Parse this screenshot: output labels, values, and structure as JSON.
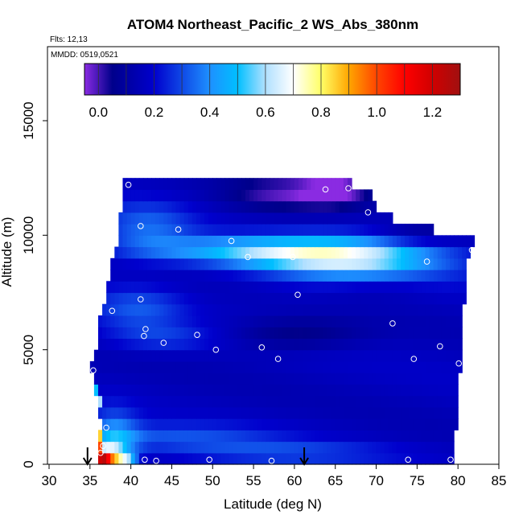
{
  "chart_data": {
    "type": "heatmap",
    "title": "ATOM4 Northeast_Pacific_2 WS_Abs_380nm",
    "flights_label": "Flts: 12,13",
    "dates_label": "MMDD: 0519,0521",
    "xlabel": "Latitude (deg N)",
    "ylabel": "Altitude (m)",
    "xlim": [
      30,
      85
    ],
    "ylim": [
      0,
      17500
    ],
    "xticks": [
      30,
      35,
      40,
      45,
      50,
      55,
      60,
      65,
      70,
      75,
      80,
      85
    ],
    "yticks": [
      0,
      5000,
      10000,
      15000
    ],
    "colorbar": {
      "min": -0.05,
      "max": 1.3,
      "ticks": [
        0.0,
        0.2,
        0.4,
        0.6,
        0.8,
        1.0,
        1.2
      ],
      "tick_labels": [
        "0.0",
        "0.2",
        "0.4",
        "0.6",
        "0.8",
        "1.0",
        "1.2"
      ],
      "stops": [
        {
          "value": -0.05,
          "color": "#8a2be2"
        },
        {
          "value": 0.05,
          "color": "#00008b"
        },
        {
          "value": 0.2,
          "color": "#0000cd"
        },
        {
          "value": 0.4,
          "color": "#1e90ff"
        },
        {
          "value": 0.5,
          "color": "#00bfff"
        },
        {
          "value": 0.6,
          "color": "#b0e0ff"
        },
        {
          "value": 0.7,
          "color": "#ffffff"
        },
        {
          "value": 0.8,
          "color": "#ffff66"
        },
        {
          "value": 0.9,
          "color": "#ffa500"
        },
        {
          "value": 1.0,
          "color": "#ff4500"
        },
        {
          "value": 1.1,
          "color": "#ff0000"
        },
        {
          "value": 1.2,
          "color": "#d00000"
        },
        {
          "value": 1.3,
          "color": "#a01010"
        }
      ]
    },
    "field": {
      "lat_step": 0.5,
      "alt_step": 500,
      "envelope": [
        {
          "alt": 0,
          "lat_min": 36.0,
          "lat_max": 79.5
        },
        {
          "alt": 500,
          "lat_min": 36.0,
          "lat_max": 79.5
        },
        {
          "alt": 1000,
          "lat_min": 36.0,
          "lat_max": 79.5
        },
        {
          "alt": 1500,
          "lat_min": 36.5,
          "lat_max": 80.0
        },
        {
          "alt": 2000,
          "lat_min": 36.0,
          "lat_max": 80.0
        },
        {
          "alt": 2500,
          "lat_min": 36.0,
          "lat_max": 80.0
        },
        {
          "alt": 3000,
          "lat_min": 35.5,
          "lat_max": 80.0
        },
        {
          "alt": 3500,
          "lat_min": 35.5,
          "lat_max": 80.0
        },
        {
          "alt": 4000,
          "lat_min": 35.0,
          "lat_max": 80.5
        },
        {
          "alt": 4500,
          "lat_min": 35.5,
          "lat_max": 80.5
        },
        {
          "alt": 5000,
          "lat_min": 36.0,
          "lat_max": 80.5
        },
        {
          "alt": 5500,
          "lat_min": 36.0,
          "lat_max": 80.5
        },
        {
          "alt": 6000,
          "lat_min": 36.0,
          "lat_max": 80.5
        },
        {
          "alt": 6500,
          "lat_min": 36.5,
          "lat_max": 80.5
        },
        {
          "alt": 7000,
          "lat_min": 37.0,
          "lat_max": 81.0
        },
        {
          "alt": 7500,
          "lat_min": 37.0,
          "lat_max": 81.0
        },
        {
          "alt": 8000,
          "lat_min": 37.5,
          "lat_max": 81.0
        },
        {
          "alt": 8500,
          "lat_min": 37.5,
          "lat_max": 81.0
        },
        {
          "alt": 9000,
          "lat_min": 38.0,
          "lat_max": 81.5
        },
        {
          "alt": 9500,
          "lat_min": 38.5,
          "lat_max": 82.0
        },
        {
          "alt": 10000,
          "lat_min": 38.5,
          "lat_max": 77.0
        },
        {
          "alt": 10500,
          "lat_min": 38.5,
          "lat_max": 72.0
        },
        {
          "alt": 11000,
          "lat_min": 39.0,
          "lat_max": 70.0
        },
        {
          "alt": 11500,
          "lat_min": 39.0,
          "lat_max": 69.5
        },
        {
          "alt": 12000,
          "lat_min": 39.0,
          "lat_max": 67.0
        }
      ],
      "background": 0.16,
      "features": [
        {
          "lat": 63,
          "alt": 9100,
          "value": 0.48,
          "sx": 9,
          "sy": 500
        },
        {
          "lat": 68,
          "alt": 8800,
          "value": 0.38,
          "sx": 8,
          "sy": 900
        },
        {
          "lat": 52,
          "alt": 9400,
          "value": 0.36,
          "sx": 9,
          "sy": 400
        },
        {
          "lat": 42,
          "alt": 10300,
          "value": 0.33,
          "sx": 4,
          "sy": 800
        },
        {
          "lat": 41,
          "alt": 6800,
          "value": 0.3,
          "sx": 4,
          "sy": 700
        },
        {
          "lat": 38,
          "alt": 1000,
          "value": 0.42,
          "sx": 2,
          "sy": 900
        },
        {
          "lat": 37,
          "alt": 500,
          "value": 0.5,
          "sx": 1.5,
          "sy": 300
        },
        {
          "lat": 45,
          "alt": 1200,
          "value": 0.3,
          "sx": 9,
          "sy": 400
        },
        {
          "lat": 58,
          "alt": 500,
          "value": 0.3,
          "sx": 10,
          "sy": 300
        },
        {
          "lat": 44,
          "alt": 5500,
          "value": 0.27,
          "sx": 5,
          "sy": 400
        },
        {
          "lat": 58,
          "alt": 11800,
          "value": 0.02,
          "sx": 5,
          "sy": 600
        },
        {
          "lat": 65,
          "alt": 12000,
          "value": -0.04,
          "sx": 3,
          "sy": 500
        },
        {
          "lat": 60,
          "alt": 5700,
          "value": 0.03,
          "sx": 6,
          "sy": 500
        },
        {
          "lat": 70,
          "alt": 7700,
          "value": 0.08,
          "sx": 5,
          "sy": 400
        },
        {
          "lat": 75,
          "alt": 10000,
          "value": 0.05,
          "sx": 4,
          "sy": 300
        }
      ],
      "surface_cells": [
        {
          "lat": 36.0,
          "value": 1.2
        },
        {
          "lat": 36.5,
          "value": 1.25
        },
        {
          "lat": 37.0,
          "value": 1.1
        },
        {
          "lat": 37.5,
          "value": 0.95
        },
        {
          "lat": 38.0,
          "value": 0.85
        },
        {
          "lat": 38.5,
          "value": 0.75
        },
        {
          "lat": 39.0,
          "value": 0.68
        },
        {
          "lat": 39.5,
          "value": 0.6
        },
        {
          "lat": 40.0,
          "value": 0.45
        },
        {
          "lat": 40.5,
          "value": 0.35
        }
      ],
      "near_surface_cells": [
        {
          "lat": 36.0,
          "alt": 500,
          "value": 1.0
        },
        {
          "lat": 36.0,
          "alt": 1000,
          "value": 0.85
        },
        {
          "lat": 36.0,
          "alt": 1500,
          "value": 0.75
        },
        {
          "lat": 36.0,
          "alt": 2500,
          "value": 0.6
        },
        {
          "lat": 35.5,
          "alt": 3000,
          "value": 0.5
        }
      ]
    },
    "points": [
      {
        "lat": 39.7,
        "alt": 12200
      },
      {
        "lat": 63.8,
        "alt": 12000
      },
      {
        "lat": 66.6,
        "alt": 12050
      },
      {
        "lat": 69.0,
        "alt": 11000
      },
      {
        "lat": 41.2,
        "alt": 10400
      },
      {
        "lat": 45.8,
        "alt": 10250
      },
      {
        "lat": 52.3,
        "alt": 9750
      },
      {
        "lat": 54.3,
        "alt": 9050
      },
      {
        "lat": 59.8,
        "alt": 9050
      },
      {
        "lat": 81.7,
        "alt": 9350
      },
      {
        "lat": 76.2,
        "alt": 8850
      },
      {
        "lat": 60.4,
        "alt": 7400
      },
      {
        "lat": 41.2,
        "alt": 7200
      },
      {
        "lat": 37.7,
        "alt": 6700
      },
      {
        "lat": 72.0,
        "alt": 6150
      },
      {
        "lat": 41.8,
        "alt": 5900
      },
      {
        "lat": 41.6,
        "alt": 5600
      },
      {
        "lat": 48.1,
        "alt": 5650
      },
      {
        "lat": 44.0,
        "alt": 5300
      },
      {
        "lat": 56.0,
        "alt": 5100
      },
      {
        "lat": 50.4,
        "alt": 5000
      },
      {
        "lat": 77.8,
        "alt": 5150
      },
      {
        "lat": 58.0,
        "alt": 4600
      },
      {
        "lat": 74.6,
        "alt": 4600
      },
      {
        "lat": 80.1,
        "alt": 4400
      },
      {
        "lat": 35.4,
        "alt": 4100
      },
      {
        "lat": 37.0,
        "alt": 1600
      },
      {
        "lat": 36.6,
        "alt": 800
      },
      {
        "lat": 36.3,
        "alt": 500
      },
      {
        "lat": 41.7,
        "alt": 200
      },
      {
        "lat": 43.1,
        "alt": 150
      },
      {
        "lat": 49.6,
        "alt": 200
      },
      {
        "lat": 57.2,
        "alt": 150
      },
      {
        "lat": 73.9,
        "alt": 200
      },
      {
        "lat": 79.1,
        "alt": 200
      }
    ],
    "markers": [
      {
        "lat": 34.7
      },
      {
        "lat": 61.2
      }
    ]
  }
}
